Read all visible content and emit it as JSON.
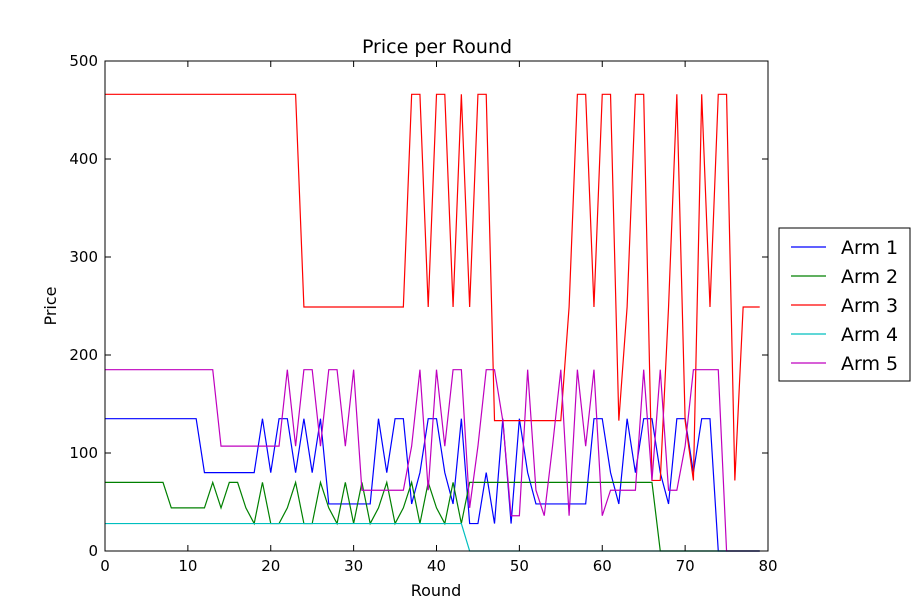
{
  "chart_data": {
    "type": "line",
    "title": "Price per Round",
    "xlabel": "Round",
    "ylabel": "Price",
    "xlim": [
      0,
      80
    ],
    "ylim": [
      0,
      500
    ],
    "xticks": [
      0,
      10,
      20,
      30,
      40,
      50,
      60,
      70,
      80
    ],
    "yticks": [
      0,
      100,
      200,
      300,
      400,
      500
    ],
    "grid": false,
    "legend_position": "outside-right",
    "series": [
      {
        "name": "Arm 1",
        "color": "#0000ff",
        "x": [
          0,
          11,
          12,
          18,
          19,
          20,
          21,
          22,
          23,
          24,
          25,
          26,
          27,
          28,
          29,
          30,
          31,
          32,
          33,
          34,
          35,
          36,
          37,
          38,
          39,
          40,
          41,
          42,
          43,
          44,
          45,
          46,
          47,
          48,
          49,
          50,
          51,
          52,
          53,
          54,
          55,
          56,
          57,
          58,
          59,
          60,
          61,
          62,
          63,
          64,
          65,
          66,
          67,
          68,
          69,
          70,
          71,
          72,
          73,
          74,
          75,
          76,
          77,
          78,
          79
        ],
        "values": [
          135,
          135,
          80,
          80,
          135,
          80,
          135,
          135,
          80,
          135,
          80,
          135,
          48,
          48,
          48,
          48,
          48,
          48,
          135,
          80,
          135,
          135,
          48,
          80,
          135,
          135,
          80,
          48,
          135,
          28,
          28,
          80,
          28,
          135,
          28,
          135,
          80,
          48,
          48,
          48,
          48,
          48,
          48,
          48,
          135,
          135,
          80,
          48,
          135,
          80,
          135,
          135,
          80,
          48,
          135,
          135,
          80,
          135,
          135,
          0,
          0,
          0,
          0,
          0,
          0
        ]
      },
      {
        "name": "Arm 2",
        "color": "#008000",
        "x": [
          0,
          7,
          8,
          12,
          13,
          14,
          15,
          16,
          17,
          18,
          19,
          20,
          21,
          22,
          23,
          24,
          25,
          26,
          27,
          28,
          29,
          30,
          31,
          32,
          33,
          34,
          35,
          36,
          37,
          38,
          39,
          40,
          41,
          42,
          43,
          44,
          45,
          46,
          47,
          66,
          67,
          68,
          79
        ],
        "values": [
          70,
          70,
          44,
          44,
          70,
          44,
          70,
          70,
          44,
          28,
          70,
          28,
          28,
          44,
          70,
          28,
          28,
          70,
          44,
          28,
          70,
          28,
          70,
          28,
          44,
          70,
          28,
          44,
          70,
          28,
          70,
          44,
          28,
          70,
          28,
          70,
          70,
          70,
          70,
          70,
          0,
          0,
          0
        ]
      },
      {
        "name": "Arm 3",
        "color": "#ff0000",
        "x": [
          0,
          23,
          24,
          36,
          37,
          38,
          39,
          40,
          41,
          42,
          43,
          44,
          45,
          46,
          47,
          48,
          49,
          50,
          51,
          52,
          53,
          54,
          55,
          56,
          57,
          58,
          59,
          60,
          61,
          62,
          63,
          64,
          65,
          66,
          67,
          68,
          69,
          70,
          71,
          72,
          73,
          74,
          75,
          76,
          77,
          78,
          79
        ],
        "values": [
          466,
          466,
          249,
          249,
          466,
          466,
          249,
          466,
          466,
          249,
          466,
          249,
          466,
          466,
          133,
          133,
          133,
          133,
          133,
          133,
          133,
          133,
          133,
          249,
          466,
          466,
          249,
          466,
          466,
          133,
          249,
          466,
          466,
          72,
          72,
          249,
          466,
          133,
          72,
          466,
          249,
          466,
          466,
          72,
          249,
          249,
          249
        ]
      },
      {
        "name": "Arm 4",
        "color": "#00bfbf",
        "x": [
          0,
          43,
          44,
          79
        ],
        "values": [
          28,
          28,
          0,
          0
        ]
      },
      {
        "name": "Arm 5",
        "color": "#bf00bf",
        "x": [
          0,
          13,
          14,
          21,
          22,
          23,
          24,
          25,
          26,
          27,
          28,
          29,
          30,
          31,
          32,
          33,
          34,
          35,
          36,
          37,
          38,
          39,
          40,
          41,
          42,
          43,
          44,
          45,
          46,
          47,
          48,
          49,
          50,
          51,
          52,
          53,
          54,
          55,
          56,
          57,
          58,
          59,
          60,
          61,
          62,
          63,
          64,
          65,
          66,
          67,
          68,
          69,
          70,
          71,
          72,
          73,
          74,
          75,
          76,
          77,
          78,
          79
        ],
        "values": [
          185,
          185,
          107,
          107,
          185,
          107,
          185,
          185,
          107,
          185,
          185,
          107,
          185,
          62,
          62,
          62,
          62,
          62,
          62,
          107,
          185,
          62,
          185,
          107,
          185,
          185,
          44,
          107,
          185,
          185,
          133,
          36,
          36,
          185,
          62,
          36,
          107,
          185,
          36,
          185,
          107,
          185,
          36,
          62,
          62,
          62,
          62,
          185,
          72,
          185,
          62,
          62,
          107,
          185,
          185,
          185,
          185,
          0,
          0,
          0,
          0,
          0
        ]
      }
    ]
  }
}
